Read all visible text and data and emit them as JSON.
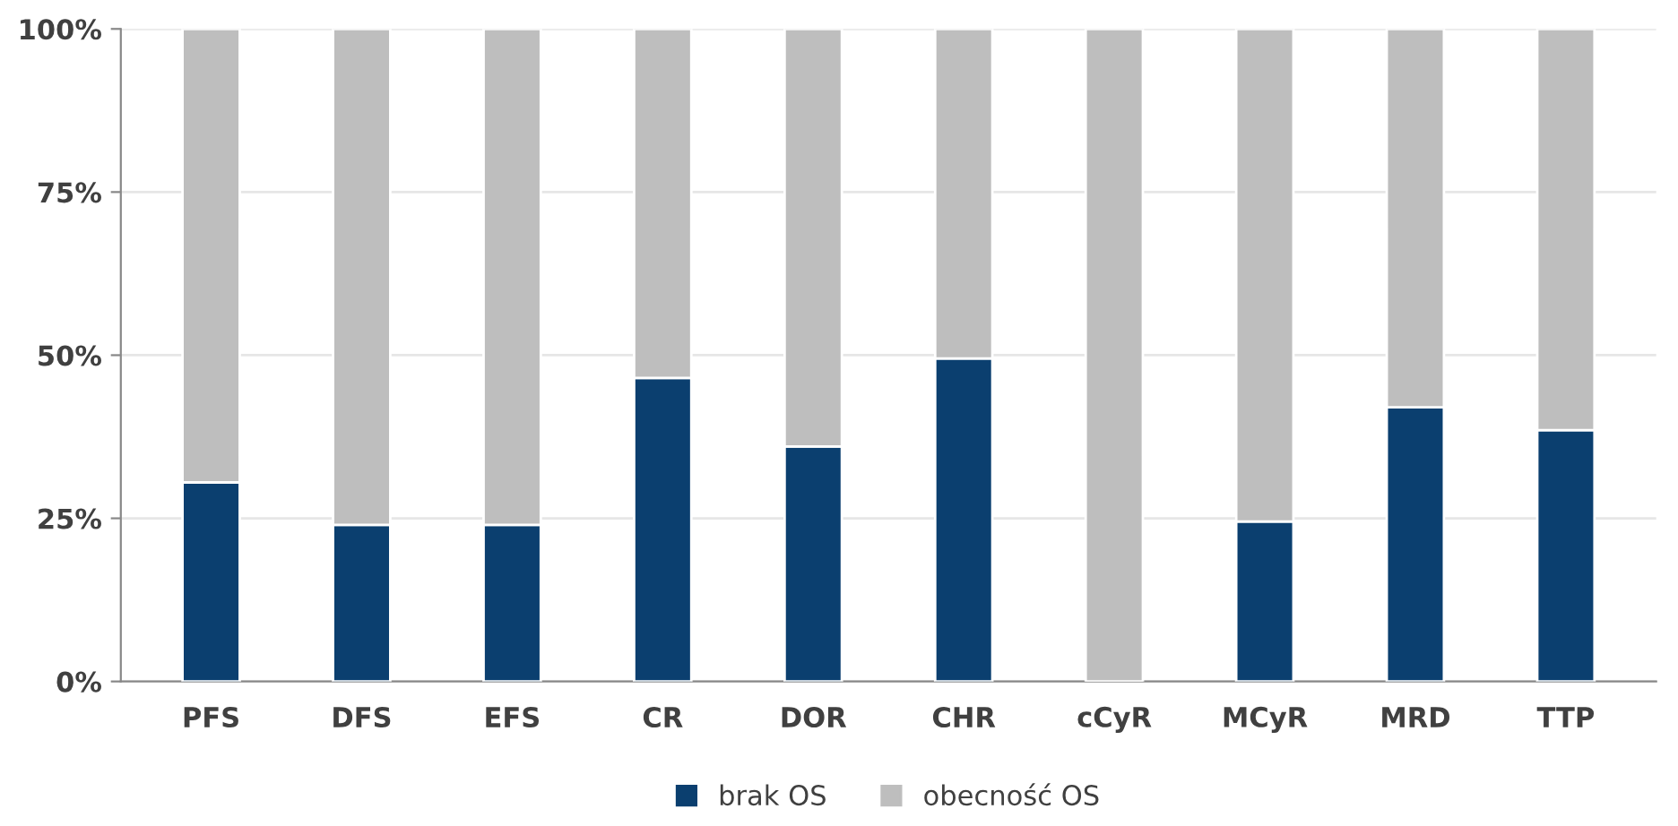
{
  "chart_data": {
    "type": "bar",
    "stacked": true,
    "categories": [
      "PFS",
      "DFS",
      "EFS",
      "CR",
      "DOR",
      "CHR",
      "cCyR",
      "MCyR",
      "MRD",
      "TTP"
    ],
    "series": [
      {
        "name": "brak OS",
        "color": "#0b3f6f",
        "values": [
          30.5,
          24,
          24,
          46.5,
          36,
          49.5,
          0,
          24.5,
          42,
          38.5
        ]
      },
      {
        "name": "obecność OS",
        "color": "#bebebe",
        "values": [
          69.5,
          76,
          76,
          53.5,
          64,
          50.5,
          100,
          75.5,
          58,
          61.5
        ]
      }
    ],
    "ylim": [
      0,
      100
    ],
    "yticks": [
      {
        "value": 0,
        "label": "0%"
      },
      {
        "value": 25,
        "label": "25%"
      },
      {
        "value": 50,
        "label": "50%"
      },
      {
        "value": 75,
        "label": "75%"
      },
      {
        "value": 100,
        "label": "100%"
      }
    ],
    "grid": "y",
    "legend": "bottom"
  }
}
